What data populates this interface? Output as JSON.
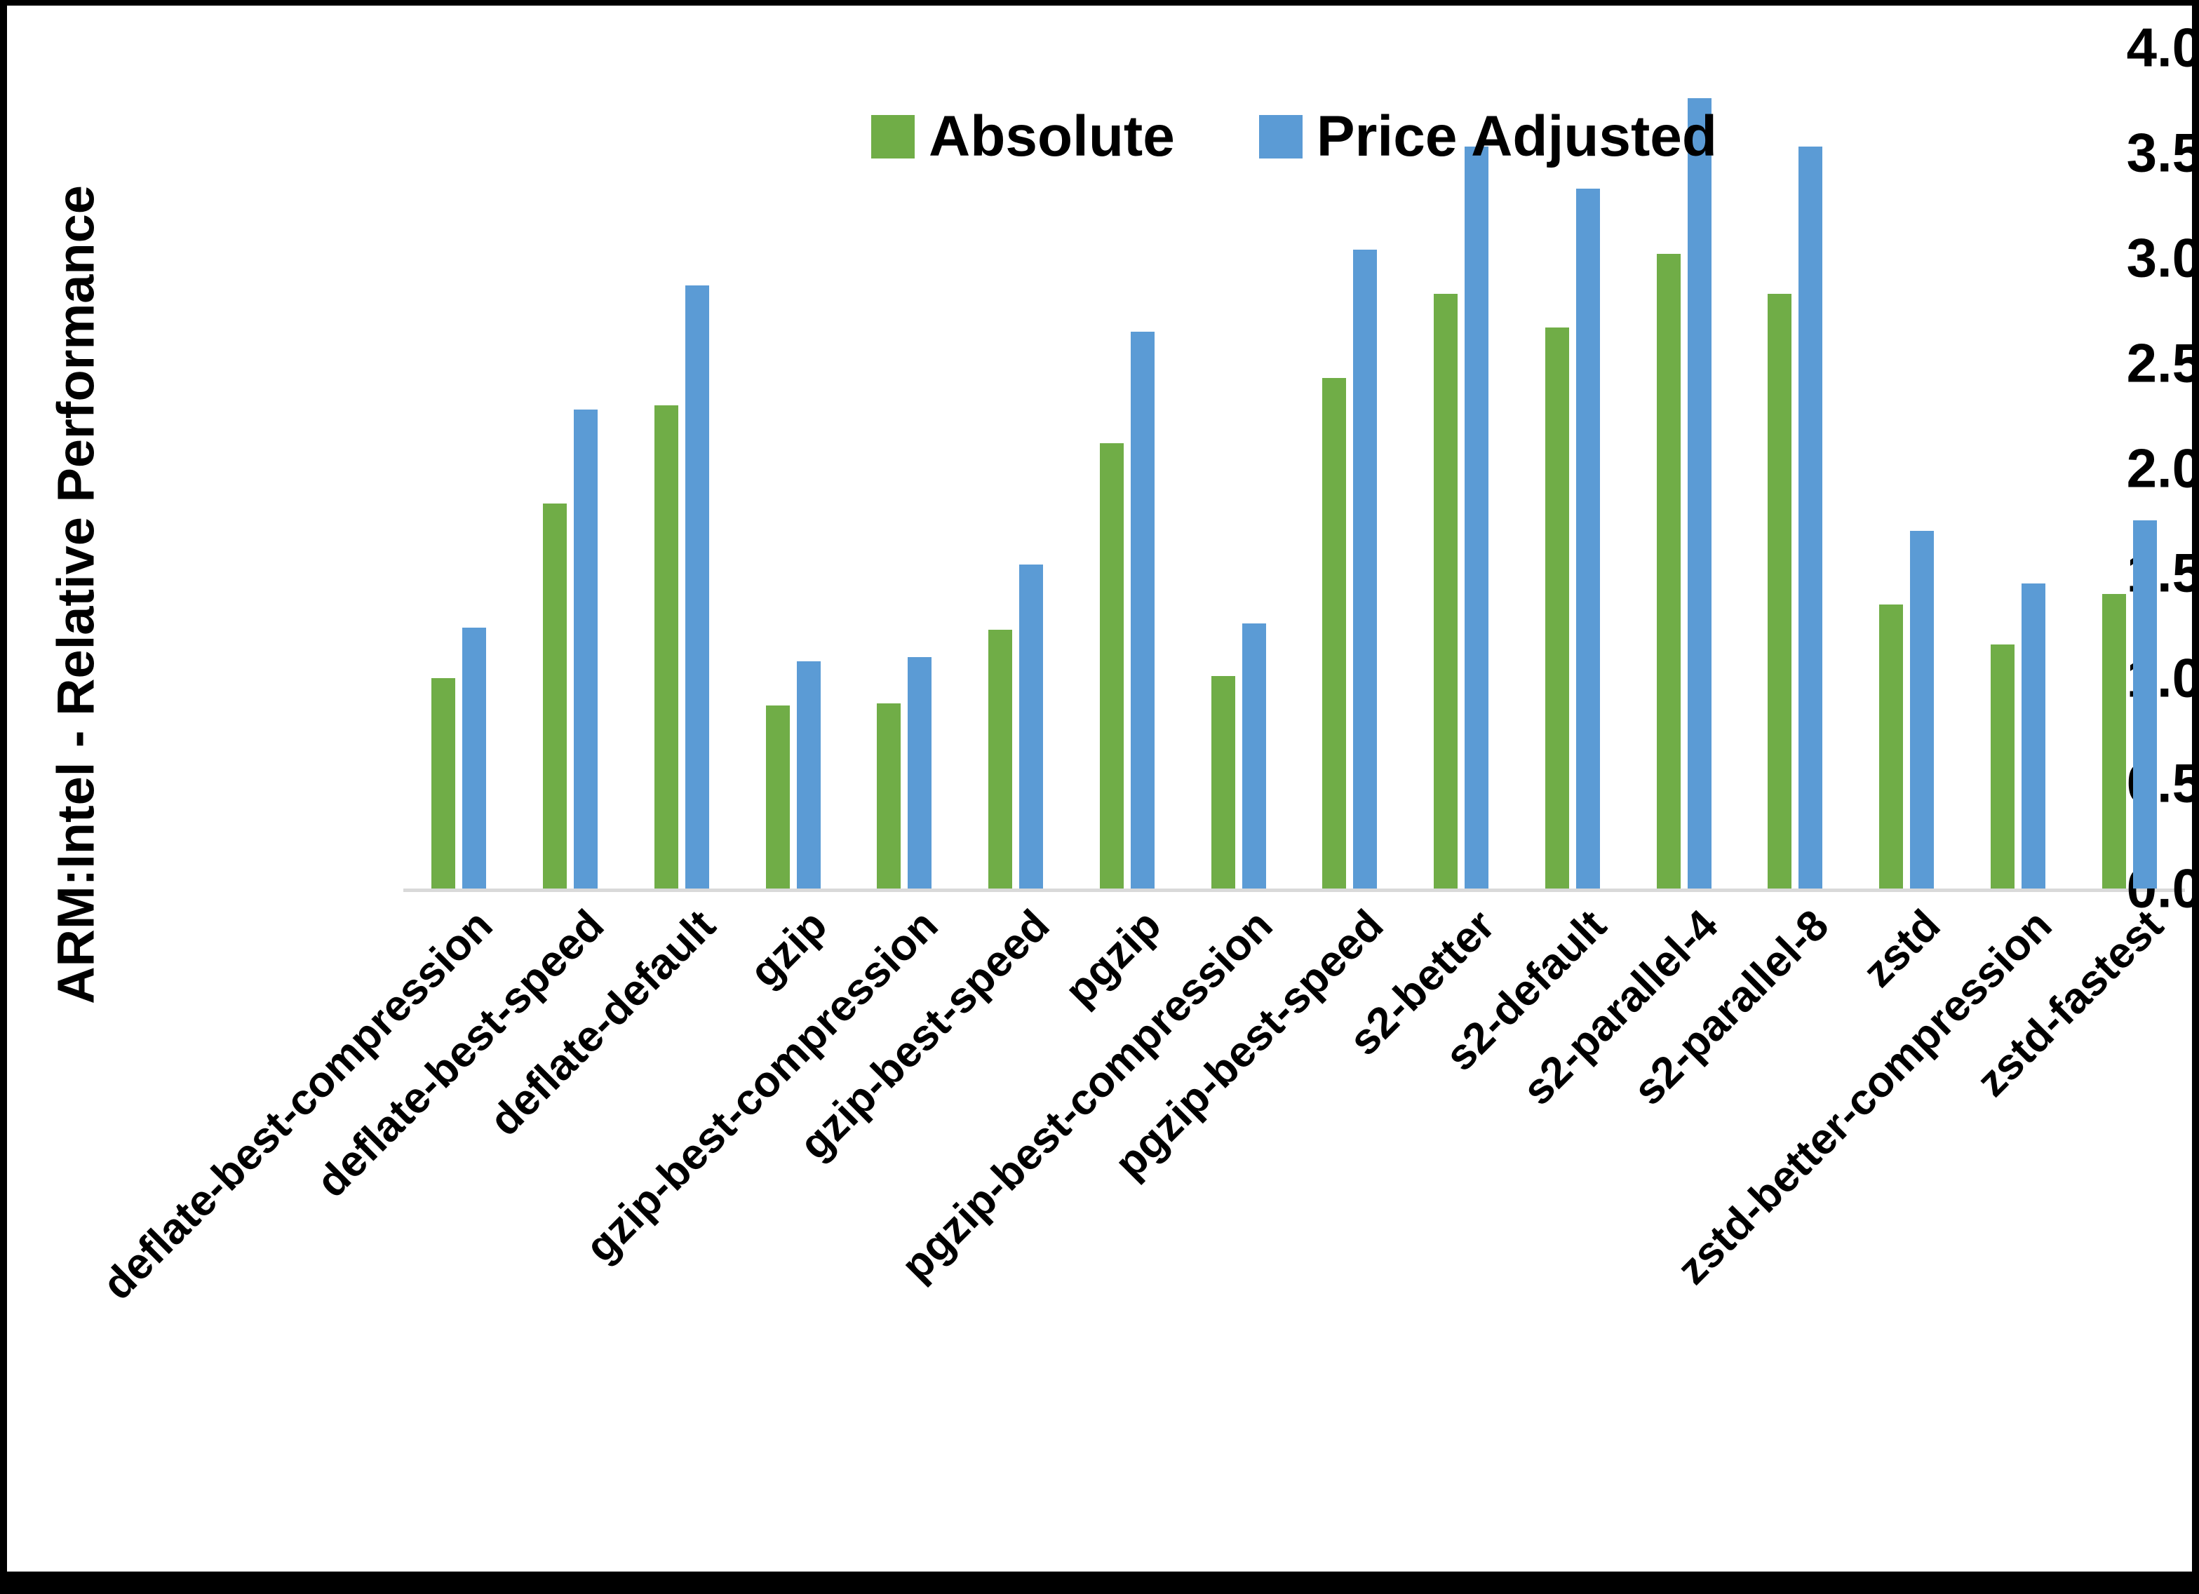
{
  "chart_data": {
    "type": "bar",
    "title": "",
    "ylabel": "ARM:Intel - Relative Performance",
    "xlabel": "",
    "ylim": [
      0.0,
      4.0
    ],
    "ytick_step": 0.5,
    "grid": false,
    "legend_position": "top-center",
    "categories": [
      "deflate-best-compression",
      "deflate-best-speed",
      "deflate-default",
      "gzip",
      "gzip-best-compression",
      "gzip-best-speed",
      "pgzip",
      "pgzip-best-compression",
      "pgzip-best-speed",
      "s2-better",
      "s2-default",
      "s2-parallel-4",
      "s2-parallel-8",
      "zstd",
      "zstd-better-compression",
      "zstd-fastest"
    ],
    "series": [
      {
        "name": "Absolute",
        "color": "#70AD47",
        "values": [
          1.0,
          1.83,
          2.3,
          0.87,
          0.88,
          1.23,
          2.12,
          1.01,
          2.43,
          2.83,
          2.67,
          3.02,
          2.83,
          1.35,
          1.16,
          1.4
        ]
      },
      {
        "name": "Price Adjusted",
        "color": "#5B9BD5",
        "values": [
          1.24,
          2.28,
          2.87,
          1.08,
          1.1,
          1.54,
          2.65,
          1.26,
          3.04,
          3.53,
          3.33,
          3.76,
          3.53,
          1.7,
          1.45,
          1.75
        ]
      }
    ],
    "axis_line_color": "#D9D9D9",
    "text_color": "#000000"
  }
}
